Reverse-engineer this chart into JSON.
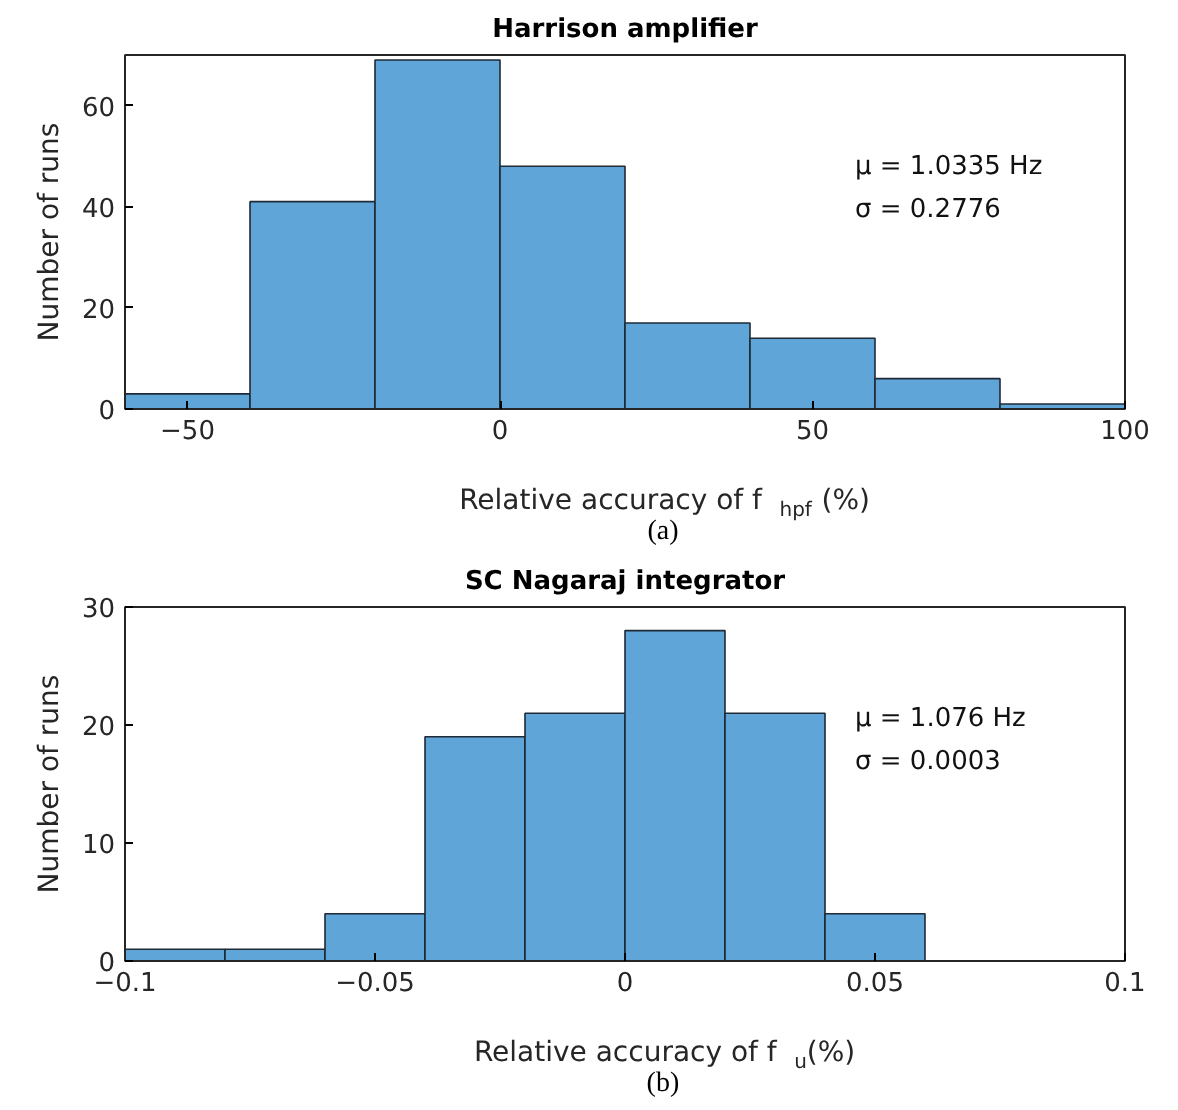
{
  "chart_data": [
    {
      "type": "histogram",
      "title": "Harrison amplifier",
      "xlabel": "Relative accuracy of f$_{hpf}$ (%)",
      "ylabel": "Number of runs",
      "bins": [
        -60,
        -40,
        -20,
        0,
        20,
        40,
        60,
        80,
        100
      ],
      "values": [
        3,
        41,
        69,
        48,
        17,
        14,
        6,
        1
      ],
      "color": "#5fa5d8",
      "xlim": [
        -60,
        100
      ],
      "ylim": [
        0,
        70
      ],
      "xticks": [
        -50,
        0,
        50,
        100
      ],
      "yticks": [
        0,
        20,
        40,
        60
      ],
      "annotations": [
        "μ = 1.0335 Hz",
        "σ = 0.2776",
        "(a)"
      ]
    },
    {
      "type": "histogram",
      "title": "SC Nagaraj integrator",
      "xlabel": "Relative accuracy of f$_{u}$(%)",
      "ylabel": "Number of runs",
      "bins": [
        -0.1,
        -0.08,
        -0.06,
        -0.04,
        -0.02,
        0,
        0.02,
        0.04,
        0.06
      ],
      "values": [
        1,
        1,
        4,
        19,
        21,
        28,
        21,
        4
      ],
      "color": "#5fa5d8",
      "xlim": [
        -0.1,
        0.1
      ],
      "ylim": [
        0,
        30
      ],
      "xticks": [
        -0.1,
        -0.05,
        0,
        0.05,
        0.1
      ],
      "yticks": [
        0,
        10,
        20,
        30
      ],
      "annotations": [
        "μ = 1.076 Hz",
        "σ = 0.0003",
        "(b)"
      ]
    }
  ]
}
